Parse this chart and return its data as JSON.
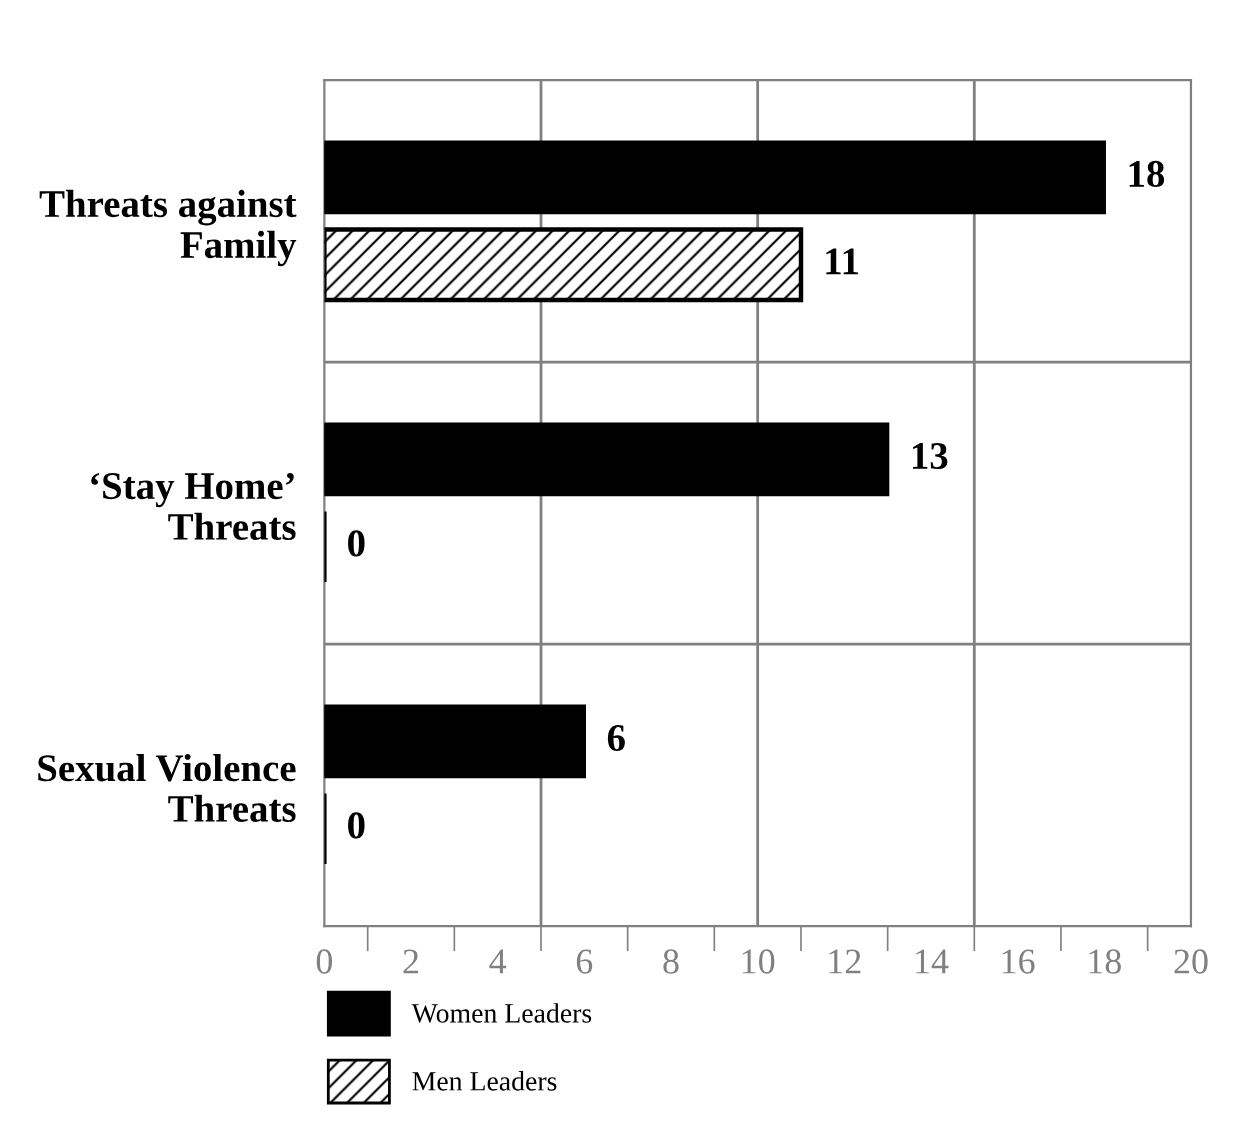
{
  "chart_data": {
    "type": "bar",
    "orientation": "horizontal",
    "categories": [
      "Threats against\nFamily",
      "‘Stay Home’\nThreats",
      "Sexual Violence\nThreats"
    ],
    "series": [
      {
        "name": "Women Leaders",
        "color": "#000000",
        "values": [
          18,
          13,
          6
        ]
      },
      {
        "name": "Men Leaders",
        "color": "#000000",
        "values": [
          11,
          0,
          0
        ]
      }
    ],
    "xlim": [
      0,
      20
    ],
    "xticks": [
      0,
      {
        "value": 1,
        "label": null
      },
      2,
      {
        "value": 3,
        "label": null
      },
      4,
      {
        "value": 5,
        "label": null
      },
      6,
      {
        "value": 7,
        "label": null
      },
      8,
      {
        "value": 9,
        "label": null
      },
      10,
      {
        "value": 11,
        "label": null
      },
      12,
      {
        "value": 13,
        "label": null
      },
      14,
      {
        "value": 15,
        "label": null
      },
      16,
      {
        "value": 17,
        "label": null
      },
      18,
      {
        "value": 19,
        "label": null
      },
      20
    ],
    "ref_lines": [
      {
        "axis": "x",
        "value": 5,
        "label": null,
        "color": "#808080"
      },
      {
        "axis": "x",
        "value": 10,
        "label": null,
        "color": "#808080"
      },
      {
        "axis": "x",
        "value": 15,
        "label": null,
        "color": "#808080"
      }
    ],
    "grid": "y",
    "data_labels": true,
    "legend": "bottom left"
  }
}
